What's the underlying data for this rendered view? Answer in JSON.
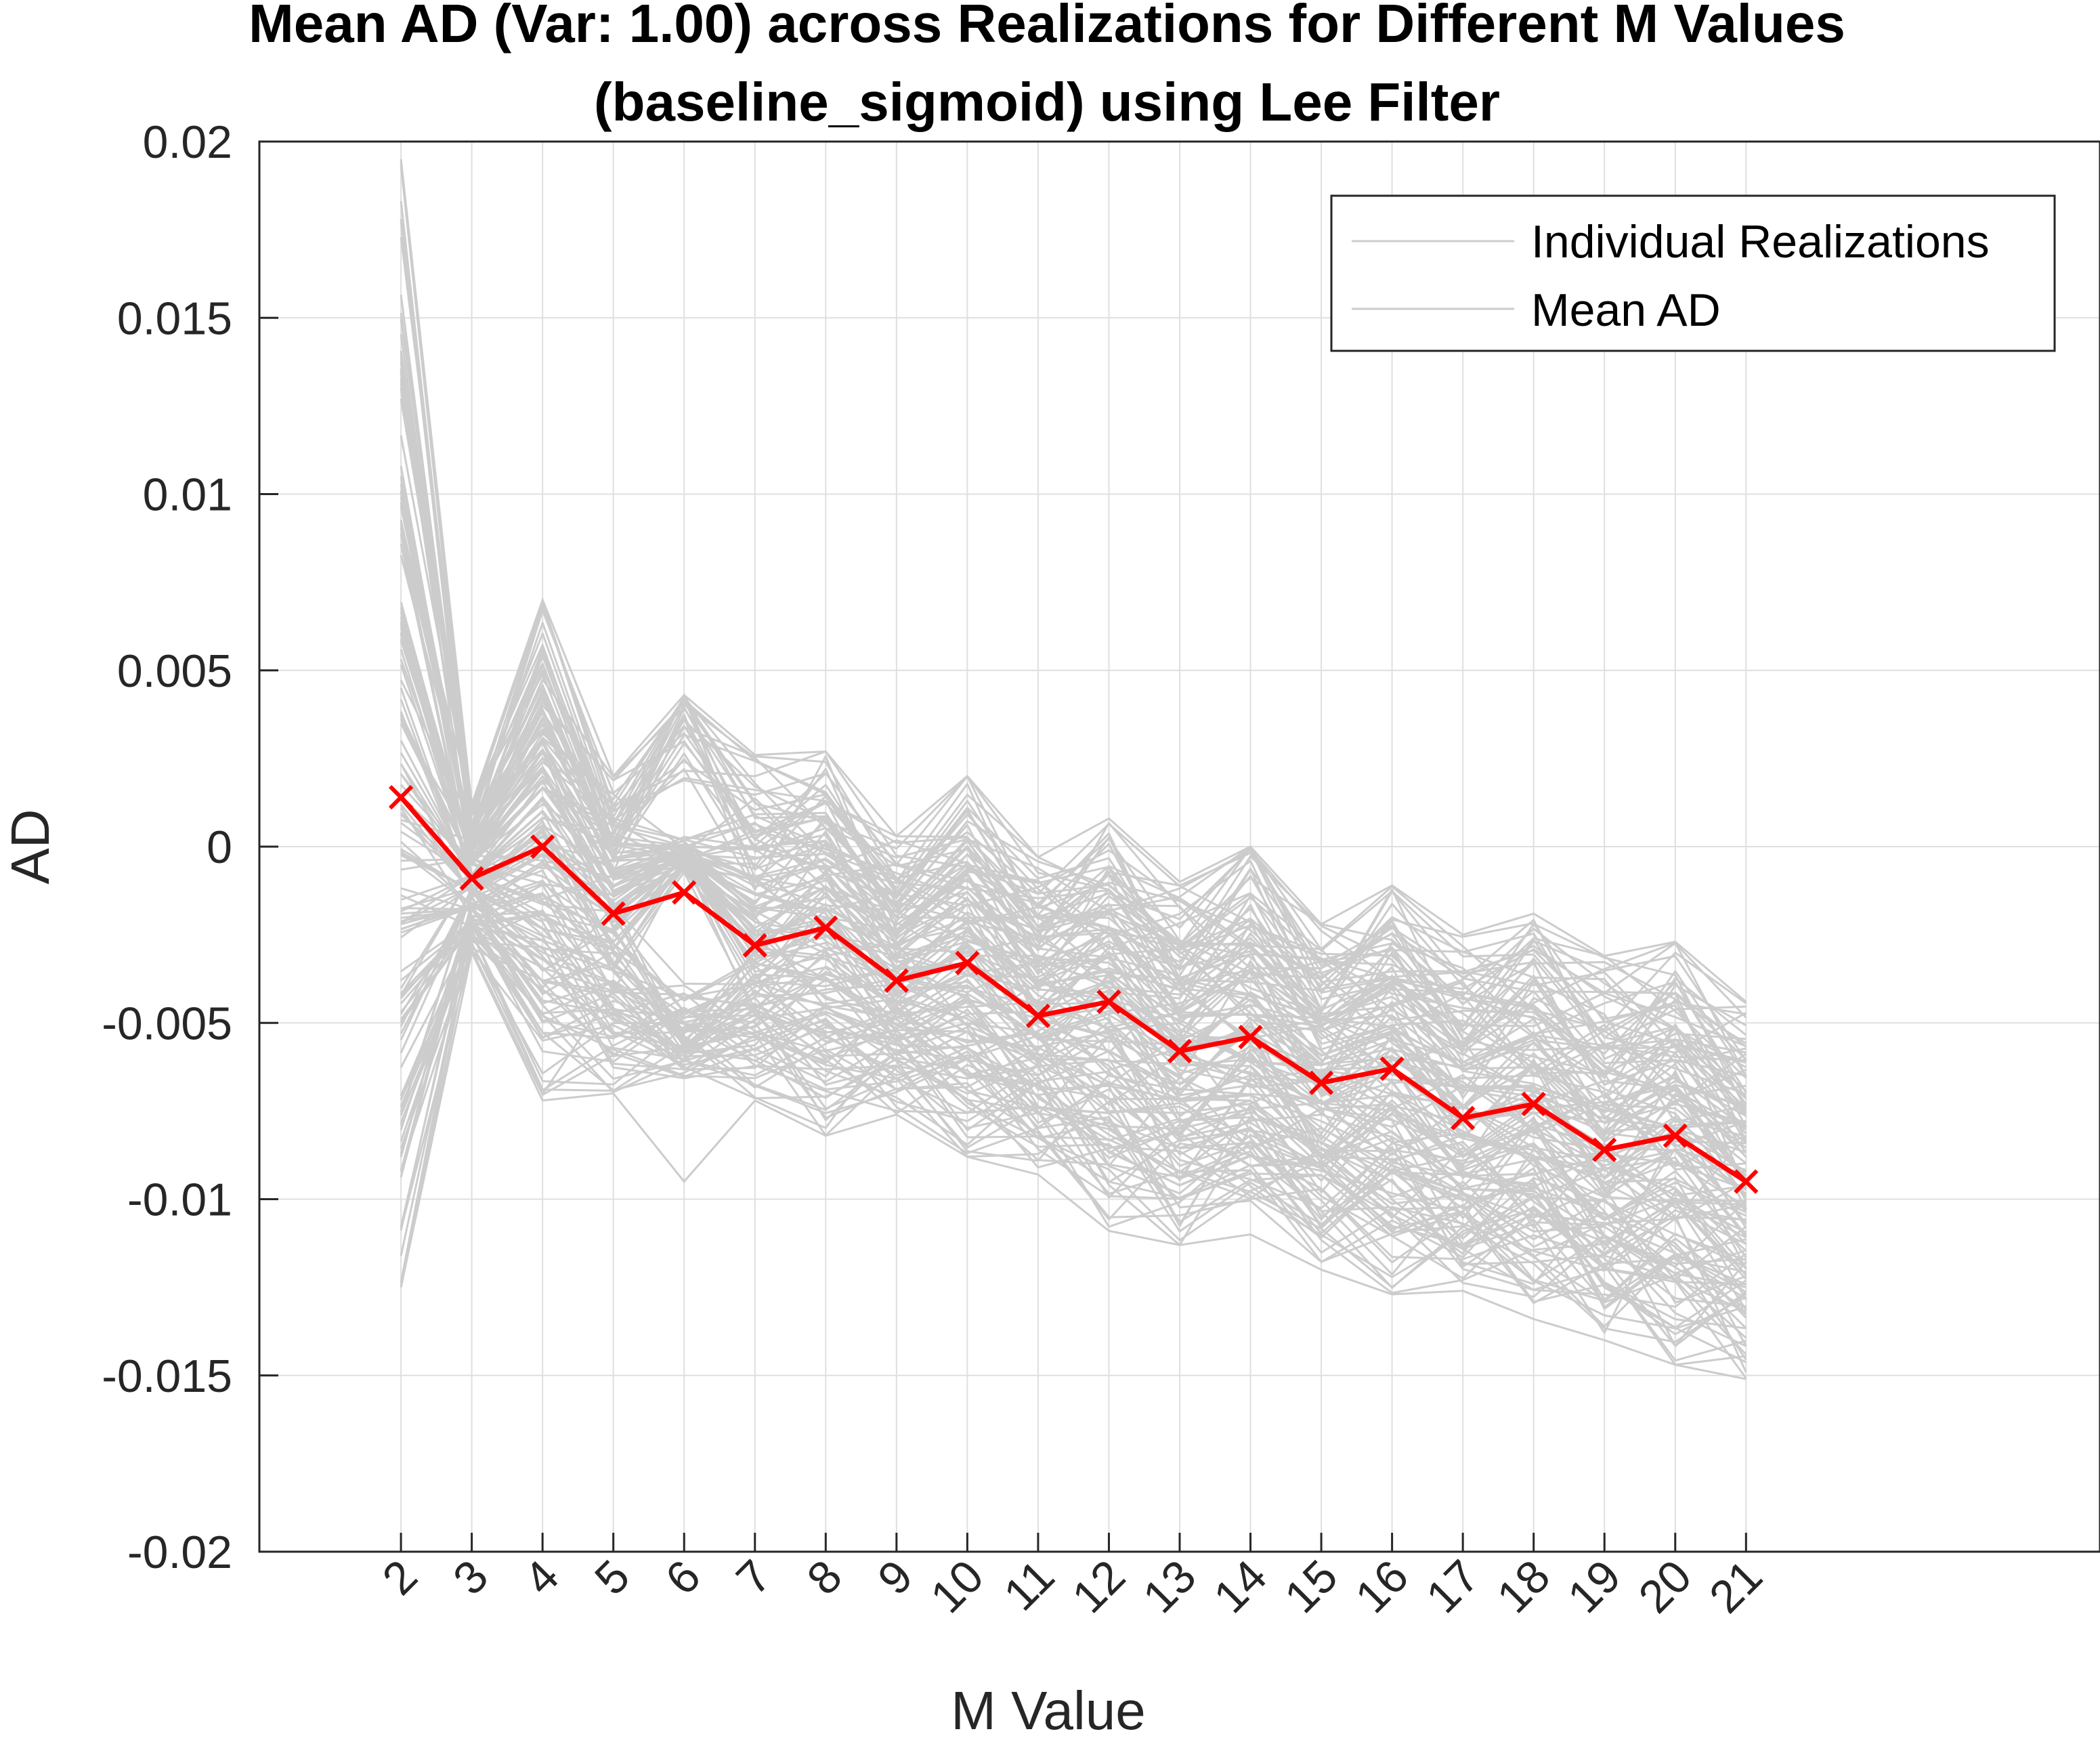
{
  "chart_data": {
    "type": "line",
    "title": [
      "Mean AD (Var: 1.00) across Realizations for Different M Values",
      "(baseline_sigmoid) using Lee Filter"
    ],
    "xlabel": "M Value",
    "ylabel": "AD",
    "grid": true,
    "legend_placement": "top-right",
    "xlim": [
      0,
      26
    ],
    "ylim": [
      -0.02,
      0.02
    ],
    "x": [
      2,
      3,
      4,
      5,
      6,
      7,
      8,
      9,
      10,
      11,
      12,
      13,
      14,
      15,
      16,
      17,
      18,
      19,
      20,
      21
    ],
    "x_tick_labels": [
      "2",
      "3",
      "4",
      "5",
      "6",
      "7",
      "8",
      "9",
      "10",
      "11",
      "12",
      "13",
      "14",
      "15",
      "16",
      "17",
      "18",
      "19",
      "20",
      "21"
    ],
    "y_ticks": [
      0.02,
      0.015,
      0.01,
      0.005,
      0,
      -0.005,
      -0.01,
      -0.015,
      -0.02
    ],
    "y_tick_labels": [
      "0.02",
      "0.015",
      "0.01",
      "0.005",
      "0",
      "-0.005",
      "-0.01",
      "-0.015",
      "-0.02"
    ],
    "series": [
      {
        "name": "Mean AD",
        "color": "#ff0000",
        "marker": "x",
        "values": [
          0.0014,
          -0.0009,
          0.0,
          -0.0019,
          -0.0013,
          -0.0028,
          -0.0023,
          -0.0038,
          -0.0033,
          -0.0048,
          -0.0044,
          -0.0058,
          -0.0054,
          -0.0067,
          -0.0063,
          -0.0077,
          -0.0073,
          -0.0086,
          -0.0082,
          -0.0095
        ]
      }
    ],
    "realizations_envelope": {
      "name": "Individual Realizations",
      "color": "#cccccc",
      "upper": [
        0.0195,
        0.0012,
        0.007,
        0.002,
        0.0043,
        0.0026,
        0.0027,
        0.0003,
        0.002,
        -0.0003,
        0.0008,
        -0.001,
        0.0,
        -0.0022,
        -0.0011,
        -0.0025,
        -0.0019,
        -0.0031,
        -0.0027,
        -0.0044
      ],
      "lower": [
        -0.0125,
        -0.003,
        -0.0072,
        -0.007,
        -0.0095,
        -0.0072,
        -0.0082,
        -0.0076,
        -0.0088,
        -0.0093,
        -0.0109,
        -0.0113,
        -0.011,
        -0.012,
        -0.0127,
        -0.0126,
        -0.0134,
        -0.014,
        -0.0147,
        -0.0151
      ]
    },
    "legend": [
      {
        "label": "Individual Realizations",
        "color": "#cccccc"
      },
      {
        "label": "Mean AD",
        "color": "#cccccc"
      }
    ]
  }
}
